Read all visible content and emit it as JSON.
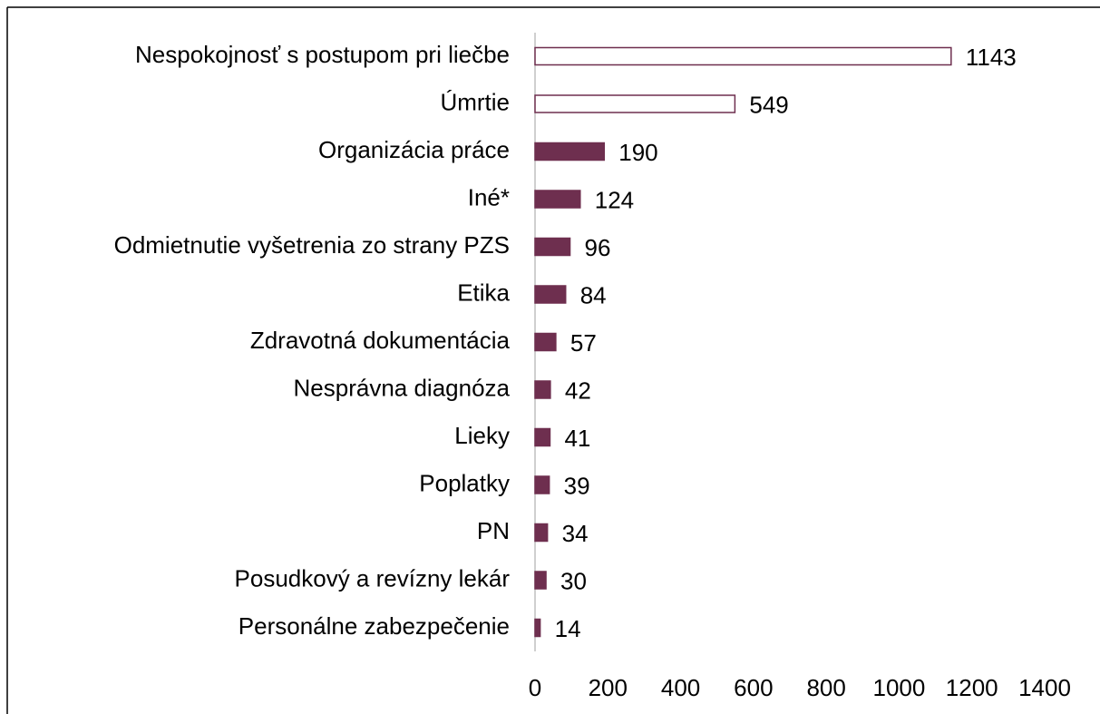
{
  "chart_data": {
    "type": "hbar",
    "categories": [
      "Nespokojnosť s postupom pri liečbe",
      "Úmrtie",
      "Organizácia práce",
      "Iné*",
      "Odmietnutie vyšetrenia zo strany PZS",
      "Etika",
      "Zdravotná dokumentácia",
      "Nesprávna diagnóza",
      "Lieky",
      "Poplatky",
      "PN",
      "Posudkový a revízny lekár",
      "Personálne zabezpečenie"
    ],
    "values": [
      1143,
      549,
      190,
      124,
      96,
      84,
      57,
      42,
      41,
      39,
      34,
      30,
      14
    ],
    "fills": [
      "#ffffff",
      "#ffffff",
      "#6e2f4f",
      "#6e2f4f",
      "#6e2f4f",
      "#6e2f4f",
      "#6e2f4f",
      "#6e2f4f",
      "#6e2f4f",
      "#6e2f4f",
      "#6e2f4f",
      "#6e2f4f",
      "#6e2f4f"
    ],
    "color": "#6e2f4f",
    "xlim": [
      0,
      1400
    ],
    "xticks": [
      0,
      200,
      400,
      600,
      800,
      1000,
      1200,
      1400
    ],
    "grid": false
  }
}
